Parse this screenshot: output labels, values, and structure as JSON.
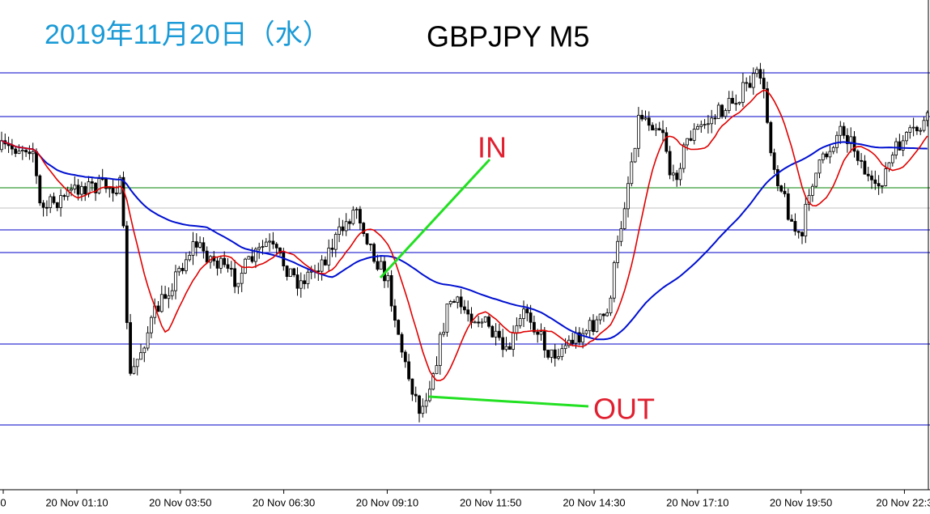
{
  "header": {
    "date": "2019年11月20日（水）",
    "symbol": "GBPJPY M5"
  },
  "annotations": {
    "entry": "IN",
    "exit": "OUT"
  },
  "x_axis_labels": [
    "0",
    "20 Nov 01:10",
    "20 Nov 03:50",
    "20 Nov 06:30",
    "20 Nov 09:10",
    "20 Nov 11:50",
    "20 Nov 14:30",
    "20 Nov 17:10",
    "20 Nov 19:50",
    "20 Nov 22:3"
  ]
}
